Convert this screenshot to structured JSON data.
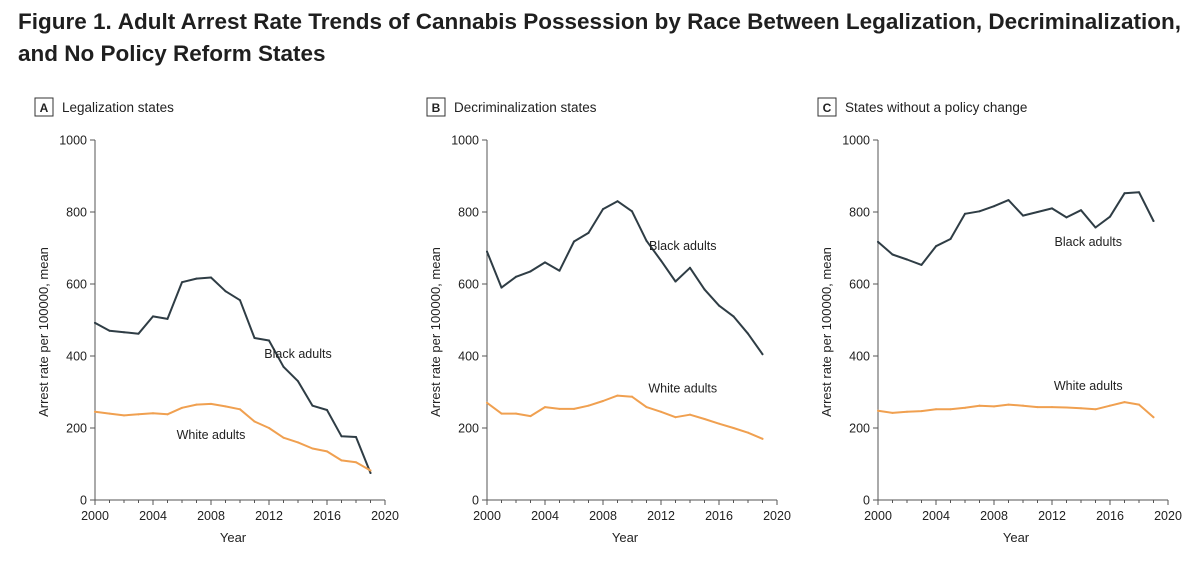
{
  "header": {
    "figure_label": "Figure 1.",
    "title": "Adult Arrest Rate Trends of Cannabis Possession by Race Between Legalization, Decriminalization, and No Policy Reform States"
  },
  "colors": {
    "black_series": "#2f3d45",
    "white_series": "#f0a050",
    "axis": "#555555"
  },
  "chart_data": [
    {
      "type": "line",
      "panel_letter": "A",
      "title": "Legalization states",
      "xlabel": "Year",
      "ylabel": "Arrest rate per 100000, mean",
      "xlim": [
        2000,
        2020
      ],
      "ylim": [
        0,
        1000
      ],
      "xticks": [
        2000,
        2004,
        2008,
        2012,
        2016,
        2020
      ],
      "yticks": [
        0,
        200,
        400,
        600,
        800,
        1000
      ],
      "x": [
        2000,
        2001,
        2002,
        2003,
        2004,
        2005,
        2006,
        2007,
        2008,
        2009,
        2010,
        2011,
        2012,
        2013,
        2014,
        2015,
        2016,
        2017,
        2018,
        2019
      ],
      "series": [
        {
          "name": "Black adults",
          "label_anchor": [
            2014,
            395
          ],
          "values": [
            492,
            470,
            466,
            462,
            510,
            503,
            605,
            615,
            618,
            580,
            555,
            450,
            443,
            370,
            330,
            262,
            250,
            177,
            175,
            75
          ]
        },
        {
          "name": "White adults",
          "label_anchor": [
            2008,
            170
          ],
          "values": [
            245,
            240,
            235,
            238,
            241,
            238,
            256,
            265,
            267,
            260,
            252,
            218,
            200,
            173,
            160,
            143,
            135,
            110,
            105,
            82
          ]
        }
      ]
    },
    {
      "type": "line",
      "panel_letter": "B",
      "title": "Decriminalization states",
      "xlabel": "Year",
      "ylabel": "Arrest rate per 100000, mean",
      "xlim": [
        2000,
        2020
      ],
      "ylim": [
        0,
        1000
      ],
      "xticks": [
        2000,
        2004,
        2008,
        2012,
        2016,
        2020
      ],
      "yticks": [
        0,
        200,
        400,
        600,
        800,
        1000
      ],
      "x": [
        2000,
        2001,
        2002,
        2003,
        2004,
        2005,
        2006,
        2007,
        2008,
        2009,
        2010,
        2011,
        2012,
        2013,
        2014,
        2015,
        2016,
        2017,
        2018,
        2019
      ],
      "series": [
        {
          "name": "Black adults",
          "label_anchor": [
            2013.5,
            695
          ],
          "values": [
            690,
            590,
            620,
            635,
            660,
            637,
            718,
            742,
            808,
            830,
            802,
            720,
            665,
            607,
            645,
            585,
            540,
            510,
            462,
            405
          ]
        },
        {
          "name": "White adults",
          "label_anchor": [
            2013.5,
            298
          ],
          "values": [
            270,
            240,
            240,
            233,
            258,
            253,
            253,
            262,
            275,
            290,
            287,
            258,
            245,
            230,
            237,
            225,
            212,
            200,
            187,
            170
          ]
        }
      ]
    },
    {
      "type": "line",
      "panel_letter": "C",
      "title": "States without a policy change",
      "xlabel": "Year",
      "ylabel": "Arrest rate per 100000, mean",
      "xlim": [
        2000,
        2020
      ],
      "ylim": [
        0,
        1000
      ],
      "xticks": [
        2000,
        2004,
        2008,
        2012,
        2016,
        2020
      ],
      "yticks": [
        0,
        200,
        400,
        600,
        800,
        1000
      ],
      "x": [
        2000,
        2001,
        2002,
        2003,
        2004,
        2005,
        2006,
        2007,
        2008,
        2009,
        2010,
        2011,
        2012,
        2013,
        2014,
        2015,
        2016,
        2017,
        2018,
        2019
      ],
      "series": [
        {
          "name": "Black adults",
          "label_anchor": [
            2014.5,
            705
          ],
          "values": [
            717,
            682,
            668,
            653,
            705,
            725,
            795,
            802,
            816,
            833,
            790,
            800,
            810,
            785,
            805,
            757,
            787,
            852,
            855,
            775
          ]
        },
        {
          "name": "White adults",
          "label_anchor": [
            2014.5,
            306
          ],
          "values": [
            248,
            242,
            245,
            247,
            252,
            252,
            256,
            262,
            260,
            265,
            262,
            258,
            258,
            257,
            255,
            252,
            262,
            272,
            265,
            230
          ]
        }
      ]
    }
  ]
}
